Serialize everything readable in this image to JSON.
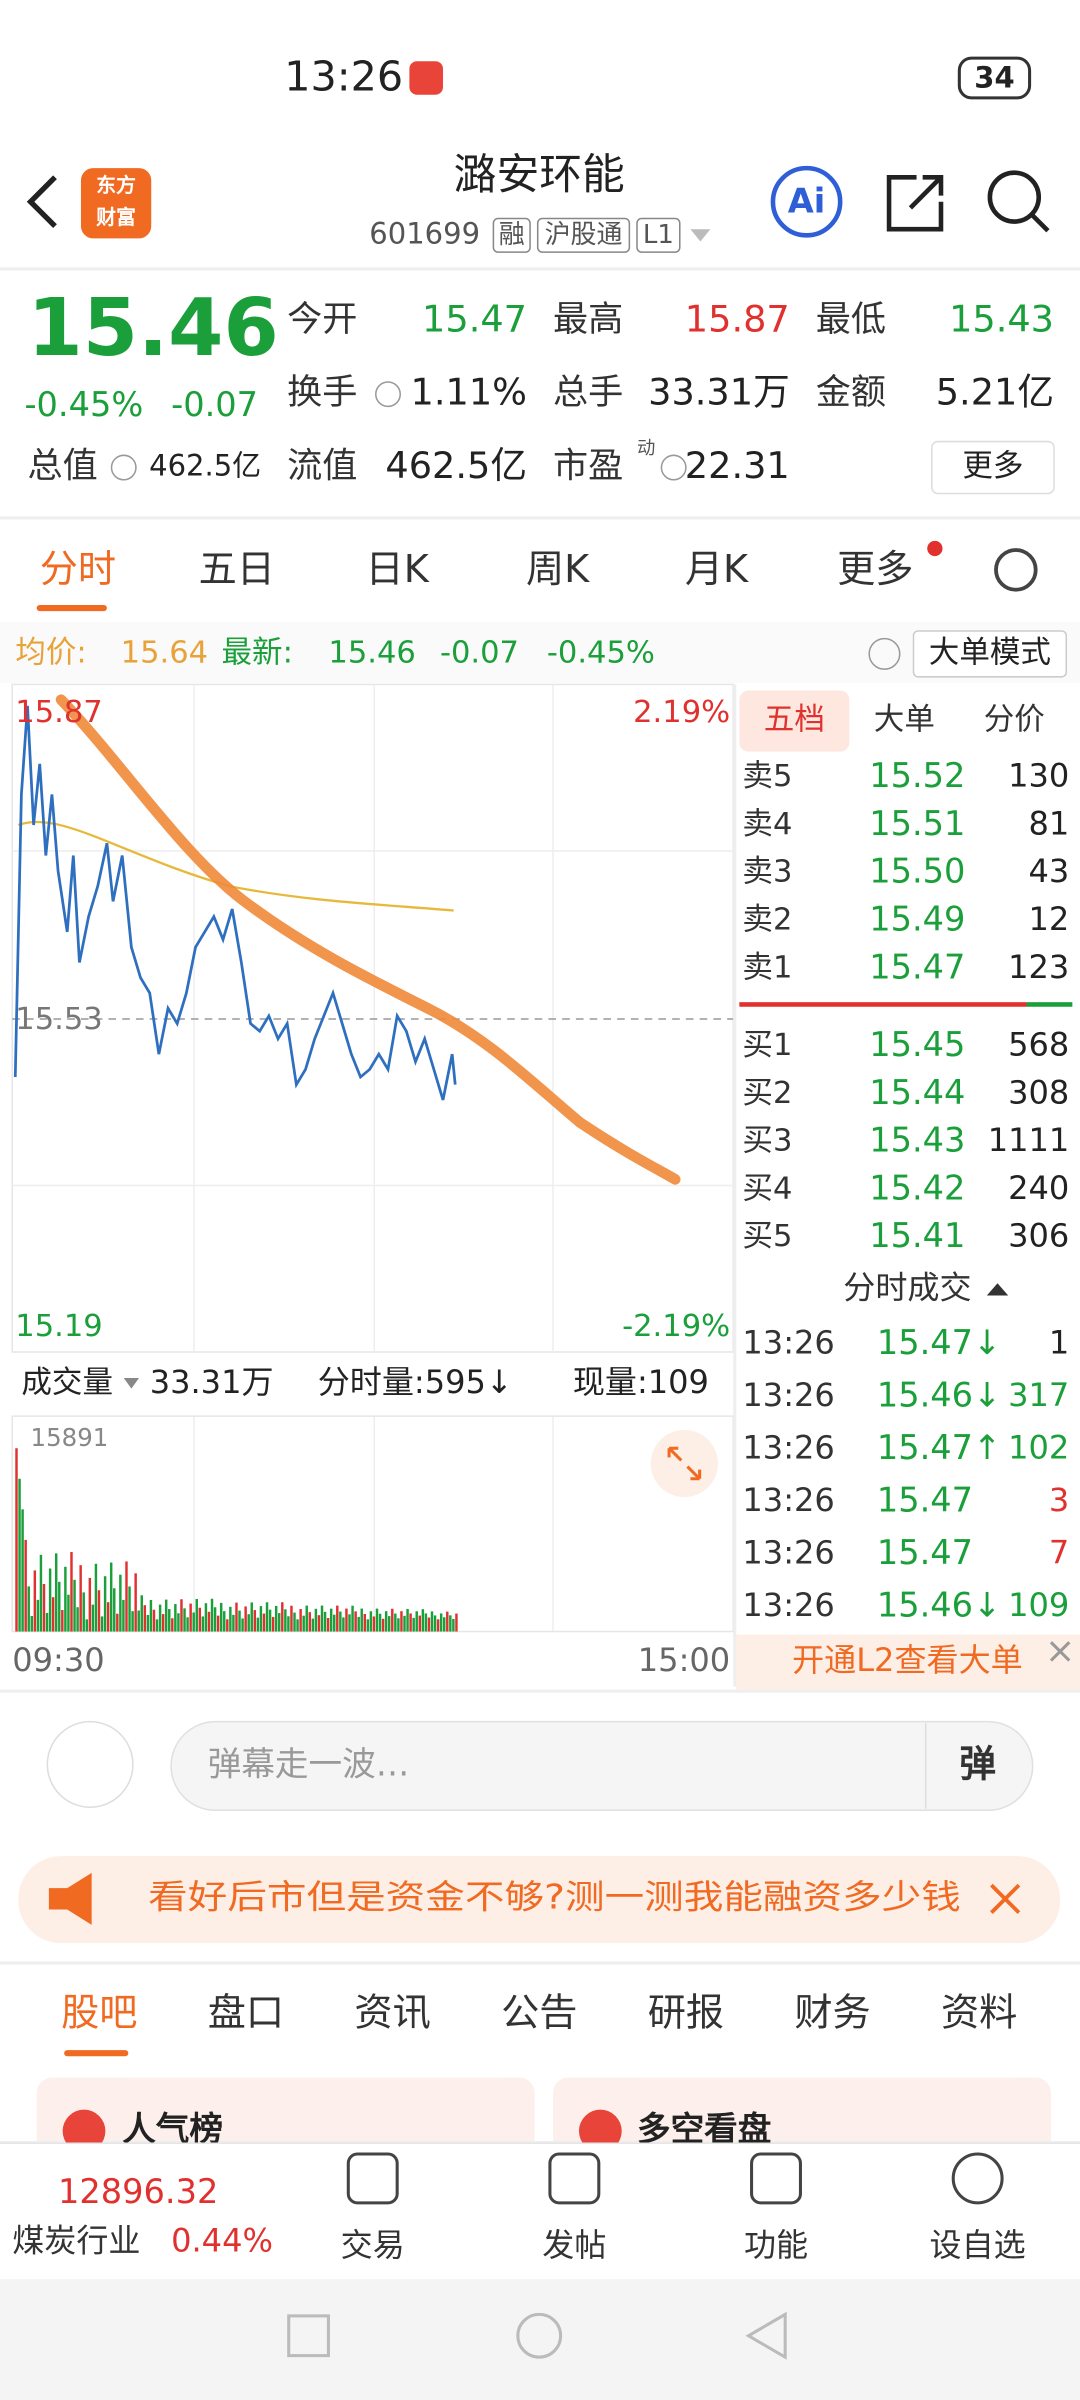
{
  "status": {
    "time": "13:26",
    "battery": "34"
  },
  "header": {
    "logo": [
      "东方",
      "财富"
    ],
    "title": "潞安环能",
    "code": "601699",
    "tags": [
      "融",
      "沪股通",
      "L1"
    ],
    "ai": "Ai"
  },
  "quote": {
    "price": "15.46",
    "change_pct": "-0.45%",
    "change": "-0.07",
    "fields": [
      {
        "label": "今开",
        "value": "15.47"
      },
      {
        "label": "最高",
        "value": "15.87"
      },
      {
        "label": "最低",
        "value": "15.43"
      },
      {
        "label": "换手",
        "value": "1.11%"
      },
      {
        "label": "总手",
        "value": "33.31万"
      },
      {
        "label": "金额",
        "value": "5.21亿"
      },
      {
        "label": "总值",
        "value": "462.5亿"
      },
      {
        "label": "流值",
        "value": "462.5亿"
      },
      {
        "label": "市盈",
        "sup": "动",
        "value": "22.31"
      }
    ],
    "more": "更多"
  },
  "tabs": [
    "分时",
    "五日",
    "日K",
    "周K",
    "月K",
    "更多"
  ],
  "info_bar": {
    "avg_label": "均价:",
    "avg": "15.64",
    "latest_label": "最新:",
    "latest": "15.46",
    "change": "-0.07",
    "change_pct": "-0.45%",
    "mode": "大单模式"
  },
  "chart": {
    "high": "15.87",
    "high_pct": "2.19%",
    "mid": "15.53",
    "low": "15.19",
    "low_pct": "-2.19%"
  },
  "volume": {
    "label": "成交量",
    "total": "33.31万",
    "period": "分时量:595↓",
    "current": "现量:109",
    "max": "15891",
    "start": "09:30",
    "end": "15:00"
  },
  "book": {
    "tabs": [
      "五档",
      "大单",
      "分价"
    ],
    "asks": [
      [
        "卖5",
        "15.52",
        "130"
      ],
      [
        "卖4",
        "15.51",
        "81"
      ],
      [
        "卖3",
        "15.50",
        "43"
      ],
      [
        "卖2",
        "15.49",
        "12"
      ],
      [
        "卖1",
        "15.47",
        "123"
      ]
    ],
    "bids": [
      [
        "买1",
        "15.45",
        "568"
      ],
      [
        "买2",
        "15.44",
        "308"
      ],
      [
        "买3",
        "15.43",
        "1111"
      ],
      [
        "买4",
        "15.42",
        "240"
      ],
      [
        "买5",
        "15.41",
        "306"
      ]
    ],
    "trades_title": "分时成交",
    "trades": [
      [
        "13:26",
        "15.47↓",
        "1"
      ],
      [
        "13:26",
        "15.46↓",
        "317"
      ],
      [
        "13:26",
        "15.47↑",
        "102"
      ],
      [
        "13:26",
        "15.47",
        "3"
      ],
      [
        "13:26",
        "15.47",
        "7"
      ],
      [
        "13:26",
        "15.46↓",
        "109"
      ]
    ],
    "l2": "开通L2查看大单"
  },
  "comment": {
    "placeholder": "弹幕走一波…",
    "button": "弹"
  },
  "banner": "看好后市但是资金不够?测一测我能融资多少钱",
  "sections": [
    "股吧",
    "盘口",
    "资讯",
    "公告",
    "研报",
    "财务",
    "资料"
  ],
  "cards": [
    "人气榜",
    "多空看盘"
  ],
  "footer": {
    "index": "12896.32",
    "industry": "煤炭行业",
    "industry_pct": "0.44%",
    "nav": [
      "交易",
      "发帖",
      "功能",
      "设自选"
    ]
  }
}
